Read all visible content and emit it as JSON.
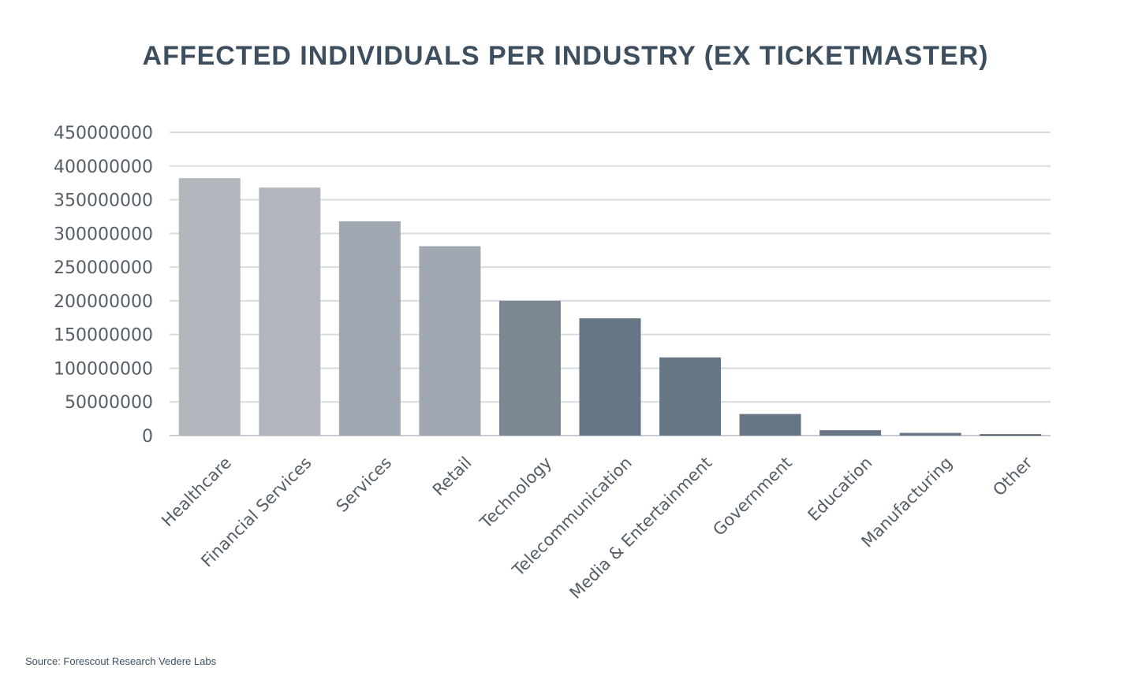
{
  "chart_data": {
    "type": "bar",
    "title": "AFFECTED INDIVIDUALS PER INDUSTRY (EX TICKETMASTER)",
    "xlabel": "",
    "ylabel": "",
    "categories": [
      "Healthcare",
      "Financial Services",
      "Services",
      "Retail",
      "Technology",
      "Telecommunication",
      "Media & Entertainment",
      "Government",
      "Education",
      "Manufacturing",
      "Other"
    ],
    "values": [
      382000000,
      368000000,
      318000000,
      281000000,
      200000000,
      174000000,
      116000000,
      32000000,
      8000000,
      4000000,
      2000000
    ],
    "colors": [
      "#b1b7bd",
      "#b1b7bd",
      "#a0a9b1",
      "#a0a9b1",
      "#7a8893",
      "#667684",
      "#667684",
      "#667684",
      "#667684",
      "#667684",
      "#3e4f5f"
    ],
    "yticks": [
      "0",
      "50000000",
      "100000000",
      "150000000",
      "200000000",
      "250000000",
      "300000000",
      "350000000",
      "400000000",
      "450000000"
    ],
    "ylim": [
      0,
      450000000
    ],
    "grid": true,
    "legend": "none"
  },
  "source": "Source: Forescout Research Vedere Labs"
}
